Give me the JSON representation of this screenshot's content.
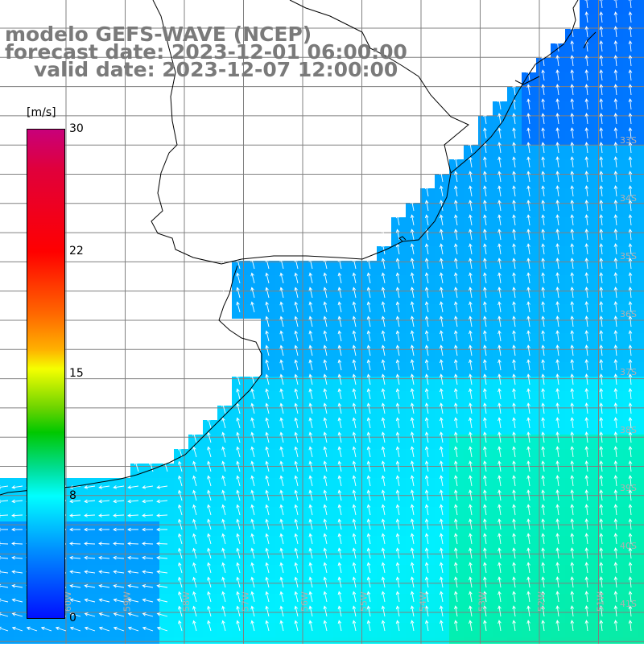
{
  "title": {
    "line1": "modelo GEFS-WAVE (NCEP)",
    "line2": "forecast date: 2023-12-01 06:00:00",
    "line3": "valid date: 2023-12-07 12:00:00"
  },
  "colorbar": {
    "unit": "[m/s]",
    "ticks": [
      "30",
      "22",
      "15",
      "8",
      "0"
    ]
  },
  "lat_labels": [
    "33S",
    "34S",
    "35S",
    "36S",
    "37S",
    "38S",
    "39S",
    "40S",
    "41S"
  ],
  "lon_labels": [
    "60W",
    "59W",
    "58W",
    "57W",
    "56W",
    "55W",
    "54W",
    "53W",
    "52W",
    "51W"
  ],
  "colors": {
    "land": "#ffffff",
    "grid": "#808080",
    "coast": "#000000",
    "arrow": "#ffffff",
    "title": "#7a7a7a"
  }
}
